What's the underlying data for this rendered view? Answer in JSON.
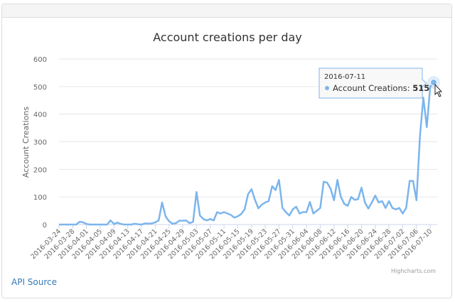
{
  "footer": {
    "api_source": "API Source"
  },
  "chart_data": {
    "type": "line",
    "title": "Account creations per day",
    "xlabel": "",
    "ylabel": "Account Creations",
    "ylim": [
      0,
      600
    ],
    "yticks": [
      0,
      100,
      200,
      300,
      400,
      500,
      600
    ],
    "grid": true,
    "legend": "none",
    "series": [
      {
        "name": "Account Creations",
        "color": "#7cb5ec",
        "values": [
          0,
          0,
          0,
          0,
          0,
          0,
          10,
          8,
          2,
          0,
          0,
          0,
          0,
          0,
          0,
          15,
          2,
          7,
          2,
          0,
          0,
          0,
          3,
          1,
          0,
          4,
          3,
          4,
          8,
          15,
          80,
          30,
          12,
          3,
          5,
          14,
          14,
          15,
          5,
          10,
          118,
          33,
          20,
          15,
          20,
          15,
          45,
          40,
          45,
          40,
          35,
          25,
          30,
          38,
          55,
          110,
          128,
          90,
          59,
          72,
          80,
          85,
          139,
          125,
          162,
          60,
          45,
          33,
          55,
          65,
          40,
          45,
          45,
          82,
          40,
          50,
          60,
          155,
          152,
          130,
          88,
          162,
          100,
          75,
          68,
          100,
          90,
          92,
          134,
          80,
          58,
          80,
          105,
          80,
          85,
          60,
          85,
          60,
          55,
          60,
          40,
          60,
          158,
          158,
          88,
          320,
          460,
          353,
          500,
          515
        ]
      }
    ],
    "start_date": "2016-03-24",
    "x_tick_labels": [
      "2016-03-24",
      "2016-03-28",
      "2016-04-01",
      "2016-04-05",
      "2016-04-09",
      "2016-04-13",
      "2016-04-17",
      "2016-04-21",
      "2016-04-25",
      "2016-04-29",
      "2016-05-03",
      "2016-05-07",
      "2016-05-11",
      "2016-05-15",
      "2016-05-19",
      "2016-05-23",
      "2016-05-27",
      "2016-05-31",
      "2016-06-04",
      "2016-06-08",
      "2016-06-12",
      "2016-06-16",
      "2016-06-20",
      "2016-06-24",
      "2016-06-28",
      "2016-07-02",
      "2016-07-06",
      "2016-07-10"
    ],
    "tooltip": {
      "date": "2016-07-11",
      "series": "Account Creations",
      "value": "515",
      "index": 109
    },
    "credits": "Highcharts.com"
  }
}
